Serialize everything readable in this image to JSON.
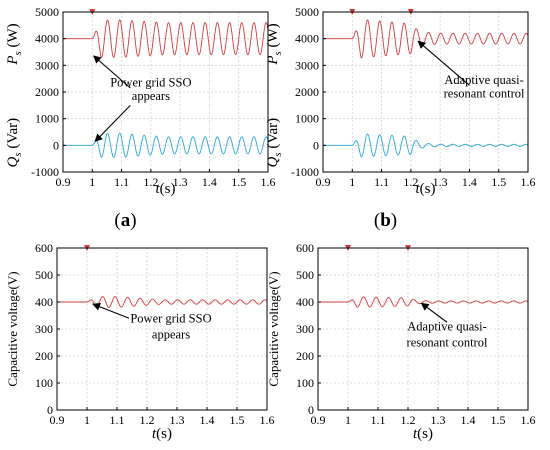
{
  "chart_data": [
    {
      "type": "line",
      "panel_label": "(a)",
      "ylabel_ps": "P_s (W)",
      "ylabel_qs": "Q_s (Var)",
      "xlabel": "t(s)",
      "xlim": [
        0.9,
        1.6
      ],
      "ylim": [
        -1000,
        5000
      ],
      "x_ticks": [
        "0.9",
        "1",
        "1.1",
        "1.2",
        "1.3",
        "1.4",
        "1.5",
        "1.6"
      ],
      "y_ticks": [
        "-1000",
        "0",
        "1000",
        "2000",
        "3000",
        "4000",
        "5000"
      ],
      "grid": true,
      "annotations": [
        {
          "text": "Power grid SSO",
          "x": 1.2,
          "y": 2200
        },
        {
          "text": "appears",
          "x": 1.2,
          "y": 1700
        }
      ],
      "event_markers": [
        1.0
      ],
      "series": [
        {
          "color": "#d23c3c",
          "baseline": 4000,
          "event_time": 1.0,
          "amplitude": 700,
          "decay_time": null,
          "final_amplitude": 600,
          "frequency_hz": 24
        },
        {
          "color": "#2ba6d8",
          "baseline": 0,
          "event_time": 1.0,
          "amplitude": 450,
          "decay_time": null,
          "final_amplitude": 320,
          "frequency_hz": 24
        }
      ]
    },
    {
      "type": "line",
      "panel_label": "(b)",
      "ylabel_ps": "P_s (W)",
      "ylabel_qs": "Q_s (Var)",
      "xlabel": "t(s)",
      "xlim": [
        0.9,
        1.6
      ],
      "ylim": [
        -1000,
        5000
      ],
      "x_ticks": [
        "0.9",
        "1",
        "1.1",
        "1.2",
        "1.3",
        "1.4",
        "1.5",
        "1.6"
      ],
      "y_ticks": [
        "-1000",
        "0",
        "1000",
        "2000",
        "3000",
        "4000",
        "5000"
      ],
      "grid": true,
      "annotations": [
        {
          "text": "Adaptive quasi-",
          "x": 1.45,
          "y": 2300
        },
        {
          "text": "resonant control",
          "x": 1.45,
          "y": 1800
        }
      ],
      "event_markers": [
        1.0,
        1.2
      ],
      "series": [
        {
          "color": "#d23c3c",
          "baseline": 4000,
          "event_time": 1.0,
          "amplitude": 750,
          "decay_time": 1.2,
          "final_amplitude": 200,
          "frequency_hz": 24
        },
        {
          "color": "#2ba6d8",
          "baseline": 0,
          "event_time": 1.0,
          "amplitude": 450,
          "decay_time": 1.2,
          "final_amplitude": 40,
          "frequency_hz": 24
        }
      ]
    },
    {
      "type": "line",
      "ylabel": "Capacitive voltage(V)",
      "xlabel": "t(s)",
      "xlim": [
        0.9,
        1.6
      ],
      "ylim": [
        0,
        600
      ],
      "x_ticks": [
        "0.9",
        "1",
        "1.1",
        "1.2",
        "1.3",
        "1.4",
        "1.5",
        "1.6"
      ],
      "y_ticks": [
        "0",
        "100",
        "200",
        "300",
        "400",
        "500",
        "600"
      ],
      "grid": true,
      "annotations": [
        {
          "text": "Power grid SSO",
          "x": 1.28,
          "y": 325
        },
        {
          "text": "appears",
          "x": 1.28,
          "y": 265
        }
      ],
      "event_markers": [
        1.0
      ],
      "series": [
        {
          "color": "#d23c3c",
          "baseline": 400,
          "event_time": 1.0,
          "amplitude": 20,
          "decay_time": null,
          "final_amplitude": 8,
          "frequency_hz": 24
        }
      ]
    },
    {
      "type": "line",
      "ylabel": "Capacitive voltage(V)",
      "xlabel": "t(s)",
      "xlim": [
        0.9,
        1.6
      ],
      "ylim": [
        0,
        600
      ],
      "x_ticks": [
        "0.9",
        "1",
        "1.1",
        "1.2",
        "1.3",
        "1.4",
        "1.5",
        "1.6"
      ],
      "y_ticks": [
        "0",
        "100",
        "200",
        "300",
        "400",
        "500",
        "600"
      ],
      "grid": true,
      "annotations": [
        {
          "text": "Adaptive quasi-",
          "x": 1.33,
          "y": 295
        },
        {
          "text": "resonant control",
          "x": 1.33,
          "y": 235
        }
      ],
      "event_markers": [
        1.0,
        1.2
      ],
      "series": [
        {
          "color": "#d23c3c",
          "baseline": 400,
          "event_time": 1.0,
          "amplitude": 20,
          "decay_time": 1.2,
          "final_amplitude": 4,
          "frequency_hz": 24
        }
      ]
    }
  ]
}
